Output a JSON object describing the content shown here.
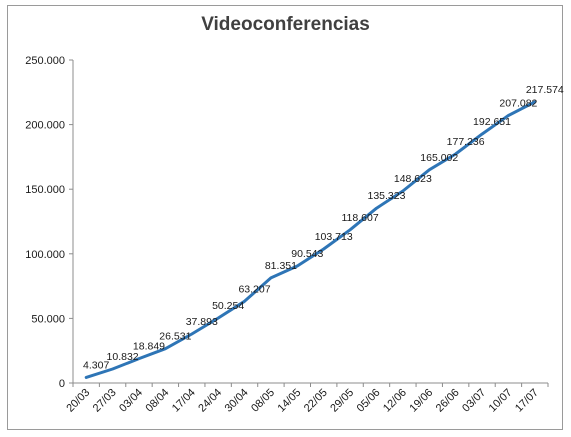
{
  "chart_data": {
    "type": "line",
    "title": "Videoconferencias",
    "xlabel": "",
    "ylabel": "",
    "categories": [
      "20/03",
      "27/03",
      "03/04",
      "08/04",
      "17/04",
      "24/04",
      "30/04",
      "08/05",
      "14/05",
      "22/05",
      "29/05",
      "05/06",
      "12/06",
      "19/06",
      "26/06",
      "03/07",
      "10/07",
      "17/07"
    ],
    "series": [
      {
        "values": [
          4307,
          10832,
          18849,
          26531,
          37893,
          50254,
          63207,
          81351,
          90543,
          103713,
          118607,
          135323,
          148623,
          165002,
          177236,
          192651,
          207082,
          217574
        ],
        "labels": [
          "4.307",
          "10.832",
          "18.849",
          "26.531",
          "37.893",
          "50.254",
          "63.207",
          "81.351",
          "90.543",
          "103.713",
          "118.607",
          "135.323",
          "148.623",
          "165.002",
          "177.236",
          "192.651",
          "207.082",
          "217.574"
        ]
      }
    ],
    "ylim": [
      0,
      250000
    ],
    "yticks": [
      0,
      50000,
      100000,
      150000,
      200000,
      250000
    ],
    "ytick_labels": [
      "0",
      "50.000",
      "100.000",
      "150.000",
      "200.000",
      "250.000"
    ],
    "grid": false,
    "legend": "none",
    "line_color": "#2e75b6"
  }
}
